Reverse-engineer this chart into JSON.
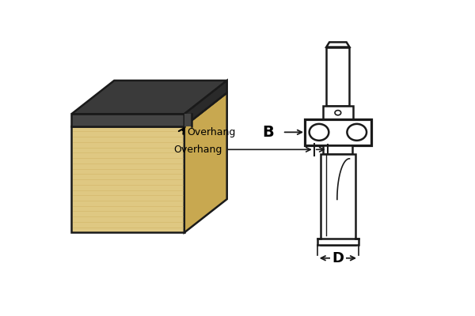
{
  "bg_color": "#ffffff",
  "wood_front_color": "#dfc882",
  "wood_top_color": "#e8d898",
  "wood_right_color": "#c8a850",
  "wood_grain_color": "#cdb060",
  "laminate_top_color": "#454545",
  "laminate_side_color": "#2a2a2a",
  "laminate_light_top": "#3a3a3a",
  "line_color": "#1a1a1a",
  "label_B": "B",
  "label_D": "D",
  "label_overhang": "Overhang",
  "fig_width": 6.0,
  "fig_height": 4.0
}
